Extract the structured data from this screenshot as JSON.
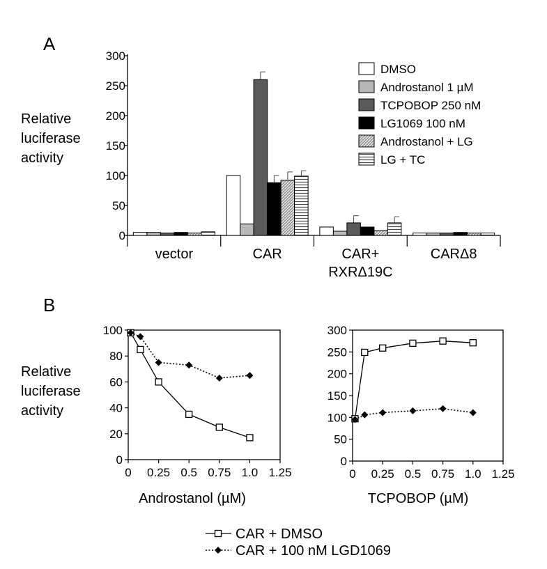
{
  "panel_a": {
    "letter": "A",
    "ylabel_lines": [
      "Relative",
      "luciferase",
      "activity"
    ],
    "group_labels": [
      [
        "vector"
      ],
      [
        "CAR"
      ],
      [
        "CAR+",
        "RXRΔ19C"
      ],
      [
        "CARΔ8"
      ]
    ]
  },
  "panel_b": {
    "letter": "B",
    "ylabel_lines": [
      "Relative",
      "luciferase",
      "activity"
    ],
    "left_xlabel": "Androstanol (µM)",
    "right_xlabel": "TCPOBOP (µM)"
  },
  "legend_b": {
    "items": [
      "CAR + DMSO",
      "CAR + 100 nM LGD1069"
    ]
  },
  "chart_data": [
    {
      "type": "bar",
      "panel": "A",
      "ylabel": "Relative luciferase activity",
      "ylim": [
        0,
        300
      ],
      "yticks": [
        0,
        50,
        100,
        150,
        200,
        250,
        300
      ],
      "categories": [
        "vector",
        "CAR",
        "CAR+ RXRΔ19C",
        "CARΔ8"
      ],
      "legend_position": "top-right",
      "series": [
        {
          "name": "DMSO",
          "color": "#ffffff",
          "pattern": "none",
          "values": [
            5,
            100,
            14,
            4
          ],
          "errors": [
            0,
            0,
            0,
            0
          ]
        },
        {
          "name": "Androstanol  1 µM",
          "color": "#b8b8b8",
          "pattern": "none",
          "values": [
            5,
            19,
            7,
            4
          ],
          "errors": [
            0,
            0,
            0,
            0
          ]
        },
        {
          "name": "TCPOBOP  250 nM",
          "color": "#5a5a5a",
          "pattern": "none",
          "values": [
            4,
            260,
            21,
            4
          ],
          "errors": [
            0,
            13,
            12,
            0
          ]
        },
        {
          "name": "LG1069  100 nM",
          "color": "#000000",
          "pattern": "none",
          "values": [
            5,
            88,
            14,
            5
          ],
          "errors": [
            0,
            12,
            0,
            0
          ]
        },
        {
          "name": "Androstanol + LG",
          "color": "#9a9a9a",
          "pattern": "diagonal",
          "values": [
            4,
            92,
            8,
            4
          ],
          "errors": [
            0,
            14,
            0,
            0
          ]
        },
        {
          "name": "LG + TC",
          "color": "#ffffff",
          "pattern": "horizontal",
          "values": [
            6,
            99,
            21,
            4
          ],
          "errors": [
            0,
            9,
            10,
            0
          ]
        }
      ]
    },
    {
      "type": "line",
      "panel": "B-left",
      "xlabel": "Androstanol (µM)",
      "ylabel": "Relative luciferase activity",
      "xlim": [
        0,
        1.25
      ],
      "ylim": [
        0,
        100
      ],
      "xticks": [
        "0",
        "0.25",
        "0.5",
        "0.75",
        "1.0",
        "1.25"
      ],
      "yticks": [
        0,
        20,
        40,
        60,
        80,
        100
      ],
      "series": [
        {
          "name": "CAR + DMSO",
          "marker": "open-square",
          "line": "solid",
          "x": [
            0.02,
            0.1,
            0.25,
            0.5,
            0.75,
            1.0
          ],
          "y": [
            98,
            85,
            60,
            35,
            25,
            17
          ]
        },
        {
          "name": "CAR + 100 nM LGD1069",
          "marker": "filled-diamond",
          "line": "dotted",
          "x": [
            0.02,
            0.1,
            0.25,
            0.5,
            0.75,
            1.0
          ],
          "y": [
            98,
            95,
            75,
            73,
            63,
            65
          ]
        }
      ]
    },
    {
      "type": "line",
      "panel": "B-right",
      "xlabel": "TCPOBOP (µM)",
      "ylabel": "Relative luciferase activity",
      "xlim": [
        0,
        1.25
      ],
      "ylim": [
        0,
        300
      ],
      "xticks": [
        "0",
        "0.25",
        "0.5",
        "0.75",
        "1.0",
        "1.25"
      ],
      "yticks": [
        0,
        50,
        100,
        150,
        200,
        250,
        300
      ],
      "series": [
        {
          "name": "CAR + DMSO",
          "marker": "open-square",
          "line": "solid",
          "x": [
            0.02,
            0.1,
            0.25,
            0.5,
            0.75,
            1.0
          ],
          "y": [
            97,
            249,
            259,
            270,
            275,
            271
          ]
        },
        {
          "name": "CAR + 100 nM LGD1069",
          "marker": "filled-diamond",
          "line": "dotted",
          "x": [
            0.02,
            0.1,
            0.25,
            0.5,
            0.75,
            1.0
          ],
          "y": [
            95,
            106,
            111,
            115,
            120,
            111
          ]
        }
      ]
    }
  ]
}
